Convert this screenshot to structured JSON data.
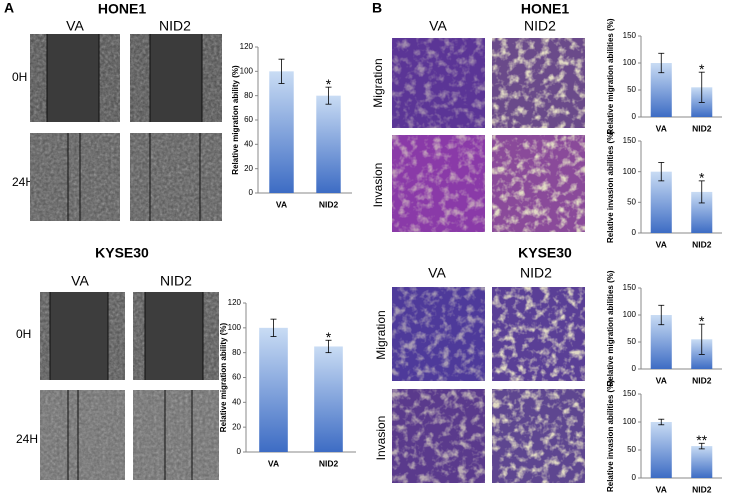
{
  "panels": [
    {
      "label": "A",
      "title": "HONE1",
      "columns": [
        "VA",
        "NID2"
      ],
      "rows": [
        "0H",
        "24H"
      ]
    },
    {
      "title": "KYSE30",
      "columns": [
        "VA",
        "NID2"
      ],
      "rows": [
        "0H",
        "24H"
      ]
    },
    {
      "label": "B",
      "title": "HONE1",
      "columns": [
        "VA",
        "NID2"
      ],
      "rows": [
        "Migration",
        "Invasion"
      ]
    },
    {
      "title": "KYSE30",
      "columns": [
        "VA",
        "NID2"
      ],
      "rows": [
        "Migration",
        "Invasion"
      ]
    }
  ],
  "chart_data": [
    {
      "type": "bar",
      "y_label": "Relative migration ability (%)",
      "categories": [
        "VA",
        "NID2"
      ],
      "values": [
        100,
        80
      ],
      "errors": [
        10,
        7
      ],
      "annotations": [
        null,
        "*"
      ],
      "ylim": [
        0,
        120
      ],
      "yticks": [
        0,
        20,
        40,
        60,
        80,
        100,
        120
      ],
      "color": [
        "#c9dcf4",
        "#3d6cc4"
      ]
    },
    {
      "type": "bar",
      "y_label": "Relative migration ability (%)",
      "categories": [
        "VA",
        "NID2"
      ],
      "values": [
        100,
        85
      ],
      "errors": [
        7,
        5
      ],
      "annotations": [
        null,
        "*"
      ],
      "ylim": [
        0,
        120
      ],
      "yticks": [
        0,
        20,
        40,
        60,
        80,
        100,
        120
      ],
      "color": [
        "#c9dcf4",
        "#3d6cc4"
      ]
    },
    {
      "type": "bar",
      "y_label": "Relative migration abilities (%)",
      "categories": [
        "VA",
        "NID2"
      ],
      "values": [
        100,
        55
      ],
      "errors": [
        18,
        28
      ],
      "annotations": [
        null,
        "*"
      ],
      "ylim": [
        0,
        150
      ],
      "yticks": [
        0,
        50,
        100,
        150
      ],
      "color": [
        "#c9dcf4",
        "#3d6cc4"
      ]
    },
    {
      "type": "bar",
      "y_label": "Relative invasion abilities (%)",
      "categories": [
        "VA",
        "NID2"
      ],
      "values": [
        100,
        67
      ],
      "errors": [
        15,
        18
      ],
      "annotations": [
        null,
        "*"
      ],
      "ylim": [
        0,
        150
      ],
      "yticks": [
        0,
        50,
        100,
        150
      ],
      "color": [
        "#c9dcf4",
        "#3d6cc4"
      ]
    },
    {
      "type": "bar",
      "y_label": "Relative migration abilities (%)",
      "categories": [
        "VA",
        "NID2"
      ],
      "values": [
        100,
        55
      ],
      "errors": [
        18,
        28
      ],
      "annotations": [
        null,
        "*"
      ],
      "ylim": [
        0,
        150
      ],
      "yticks": [
        0,
        50,
        100,
        150
      ],
      "color": [
        "#c9dcf4",
        "#3d6cc4"
      ]
    },
    {
      "type": "bar",
      "y_label": "Relative invasion abilities (%)",
      "categories": [
        "VA",
        "NID2"
      ],
      "values": [
        100,
        57
      ],
      "errors": [
        5,
        5
      ],
      "annotations": [
        null,
        "**"
      ],
      "ylim": [
        0,
        150
      ],
      "yticks": [
        0,
        50,
        100,
        150
      ],
      "color": [
        "#c9dcf4",
        "#3d6cc4"
      ]
    }
  ]
}
